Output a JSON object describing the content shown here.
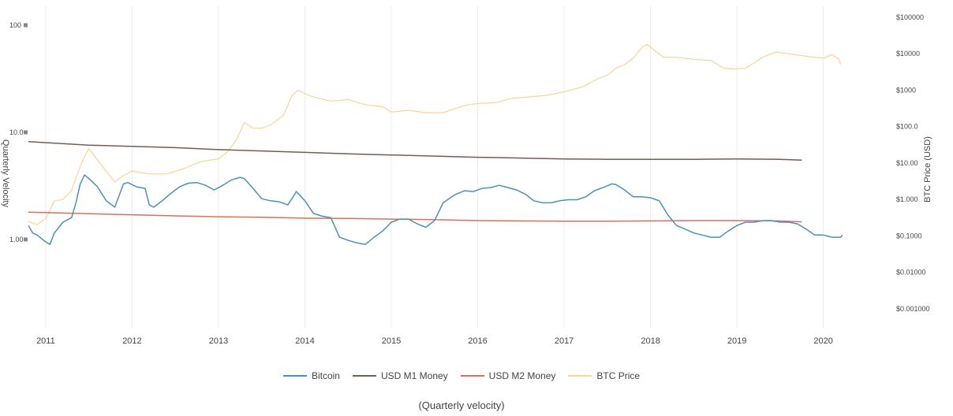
{
  "chart_data": {
    "type": "line",
    "caption": "(Quarterly velocity)",
    "ylabel_left": "Quarterly Velocity",
    "ylabel_right": "BTC Price (USD)",
    "xlim": [
      2010.8,
      2020.35
    ],
    "ylim_left": [
      0.15,
      150
    ],
    "ylim_right": [
      0.0003,
      200000
    ],
    "yscale": "log",
    "grid": "vertical",
    "legend_position": "bottom",
    "x_ticks": [
      "2011",
      "2012",
      "2013",
      "2014",
      "2015",
      "2016",
      "2017",
      "2018",
      "2019",
      "2020"
    ],
    "y_left_ticks": [
      {
        "value": 100,
        "label": "100"
      },
      {
        "value": 10,
        "label": "10.0"
      },
      {
        "value": 1,
        "label": "1.00"
      }
    ],
    "y_right_ticks": [
      {
        "value": 100000,
        "label": "$100000"
      },
      {
        "value": 10000,
        "label": "$10000"
      },
      {
        "value": 1000,
        "label": "$1000"
      },
      {
        "value": 100,
        "label": "$100.0"
      },
      {
        "value": 10,
        "label": "$10.00"
      },
      {
        "value": 1,
        "label": "$1.000"
      },
      {
        "value": 0.1,
        "label": "$0.1000"
      },
      {
        "value": 0.01,
        "label": "$0.01000"
      },
      {
        "value": 0.001,
        "label": "$0.001000"
      }
    ],
    "series": [
      {
        "name": "Bitcoin",
        "axis": "left",
        "color": "#4a90bf",
        "x": [
          2010.8,
          2010.85,
          2010.9,
          2011.0,
          2011.05,
          2011.1,
          2011.2,
          2011.3,
          2011.35,
          2011.4,
          2011.45,
          2011.5,
          2011.6,
          2011.7,
          2011.8,
          2011.9,
          2011.95,
          2012.05,
          2012.15,
          2012.2,
          2012.25,
          2012.35,
          2012.45,
          2012.55,
          2012.65,
          2012.75,
          2012.85,
          2012.95,
          2013.05,
          2013.15,
          2013.25,
          2013.3,
          2013.4,
          2013.5,
          2013.6,
          2013.7,
          2013.8,
          2013.85,
          2013.9,
          2014.0,
          2014.1,
          2014.2,
          2014.3,
          2014.4,
          2014.5,
          2014.6,
          2014.7,
          2014.8,
          2014.9,
          2015.0,
          2015.1,
          2015.2,
          2015.3,
          2015.4,
          2015.5,
          2015.6,
          2015.7,
          2015.75,
          2015.85,
          2015.95,
          2016.05,
          2016.15,
          2016.25,
          2016.35,
          2016.45,
          2016.55,
          2016.65,
          2016.75,
          2016.85,
          2016.95,
          2017.05,
          2017.15,
          2017.25,
          2017.35,
          2017.45,
          2017.55,
          2017.6,
          2017.7,
          2017.8,
          2017.9,
          2018.0,
          2018.1,
          2018.2,
          2018.3,
          2018.4,
          2018.5,
          2018.6,
          2018.7,
          2018.8,
          2018.9,
          2019.0,
          2019.1,
          2019.2,
          2019.3,
          2019.4,
          2019.5,
          2019.6,
          2019.7,
          2019.8,
          2019.9,
          2020.0,
          2020.1,
          2020.2,
          2020.22
        ],
        "values": [
          1.35,
          1.15,
          1.1,
          0.95,
          0.9,
          1.15,
          1.45,
          1.6,
          2.2,
          3.3,
          4.0,
          3.7,
          3.1,
          2.3,
          2.0,
          3.3,
          3.4,
          3.1,
          3.0,
          2.1,
          2.0,
          2.3,
          2.7,
          3.1,
          3.35,
          3.4,
          3.2,
          2.9,
          3.2,
          3.6,
          3.8,
          3.7,
          3.0,
          2.4,
          2.3,
          2.25,
          2.1,
          2.4,
          2.8,
          2.3,
          1.75,
          1.65,
          1.6,
          1.05,
          0.98,
          0.93,
          0.9,
          1.05,
          1.2,
          1.45,
          1.55,
          1.55,
          1.4,
          1.3,
          1.5,
          2.2,
          2.5,
          2.65,
          2.85,
          2.8,
          3.0,
          3.05,
          3.2,
          3.05,
          2.9,
          2.65,
          2.3,
          2.2,
          2.2,
          2.3,
          2.35,
          2.35,
          2.5,
          2.85,
          3.05,
          3.3,
          3.25,
          2.9,
          2.5,
          2.5,
          2.45,
          2.3,
          1.7,
          1.35,
          1.25,
          1.15,
          1.1,
          1.05,
          1.05,
          1.2,
          1.35,
          1.45,
          1.45,
          1.5,
          1.5,
          1.45,
          1.45,
          1.4,
          1.25,
          1.1,
          1.1,
          1.05,
          1.05,
          1.1
        ]
      },
      {
        "name": "USD M1 Money",
        "axis": "left",
        "color": "#7b5a52",
        "x": [
          2010.8,
          2011.5,
          2012.0,
          2012.5,
          2013.0,
          2013.5,
          2014.0,
          2014.5,
          2015.0,
          2015.5,
          2016.0,
          2016.5,
          2017.0,
          2017.5,
          2018.0,
          2018.5,
          2019.0,
          2019.5,
          2019.75
        ],
        "values": [
          8.2,
          7.6,
          7.4,
          7.2,
          6.9,
          6.7,
          6.5,
          6.3,
          6.15,
          6.0,
          5.85,
          5.75,
          5.65,
          5.6,
          5.6,
          5.6,
          5.65,
          5.6,
          5.5
        ]
      },
      {
        "name": "USD M2 Money",
        "axis": "left",
        "color": "#d9705a",
        "x": [
          2010.8,
          2011.5,
          2012.0,
          2012.5,
          2013.0,
          2013.5,
          2014.0,
          2014.5,
          2015.0,
          2015.5,
          2016.0,
          2016.5,
          2017.0,
          2017.5,
          2018.0,
          2018.5,
          2019.0,
          2019.5,
          2019.75
        ],
        "values": [
          1.8,
          1.74,
          1.7,
          1.66,
          1.63,
          1.61,
          1.58,
          1.57,
          1.55,
          1.53,
          1.5,
          1.49,
          1.48,
          1.48,
          1.49,
          1.5,
          1.5,
          1.49,
          1.46
        ]
      },
      {
        "name": "BTC Price",
        "axis": "right",
        "color": "#f7d594",
        "x": [
          2010.8,
          2010.9,
          2011.0,
          2011.1,
          2011.2,
          2011.3,
          2011.4,
          2011.45,
          2011.5,
          2011.6,
          2011.7,
          2011.8,
          2011.9,
          2012.0,
          2012.2,
          2012.4,
          2012.6,
          2012.8,
          2013.0,
          2013.1,
          2013.2,
          2013.3,
          2013.4,
          2013.5,
          2013.6,
          2013.75,
          2013.85,
          2013.92,
          2014.0,
          2014.1,
          2014.3,
          2014.5,
          2014.7,
          2014.9,
          2015.0,
          2015.2,
          2015.4,
          2015.6,
          2015.8,
          2015.9,
          2016.0,
          2016.2,
          2016.4,
          2016.6,
          2016.8,
          2017.0,
          2017.2,
          2017.4,
          2017.5,
          2017.6,
          2017.7,
          2017.8,
          2017.9,
          2017.96,
          2018.05,
          2018.15,
          2018.3,
          2018.5,
          2018.7,
          2018.85,
          2018.95,
          2019.1,
          2019.3,
          2019.45,
          2019.6,
          2019.8,
          2020.0,
          2020.1,
          2020.18,
          2020.2
        ],
        "values": [
          0.25,
          0.2,
          0.3,
          0.9,
          1.0,
          1.8,
          8.0,
          15,
          25,
          12,
          6,
          3.0,
          4.5,
          6.0,
          5.0,
          5.0,
          7.0,
          11,
          13,
          20,
          40,
          130,
          90,
          90,
          110,
          200,
          700,
          1000,
          800,
          650,
          500,
          550,
          400,
          350,
          250,
          280,
          240,
          240,
          350,
          400,
          430,
          450,
          600,
          650,
          720,
          900,
          1200,
          2100,
          2600,
          4000,
          5000,
          7500,
          15000,
          18000,
          12000,
          8000,
          8000,
          7000,
          6500,
          4000,
          3800,
          4000,
          8000,
          11000,
          10000,
          8500,
          7500,
          9500,
          7000,
          5000
        ]
      }
    ]
  }
}
